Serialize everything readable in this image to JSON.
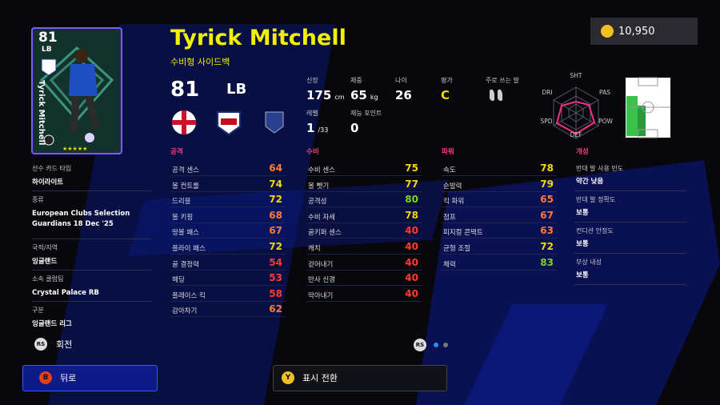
{
  "coins": "10,950",
  "card": {
    "rating": 81,
    "position": "LB",
    "name": "Tyrick Mitchell"
  },
  "player": {
    "name": "Tyrick Mitchell",
    "style": "수비형 사이드백",
    "rating": 81,
    "position": "LB"
  },
  "info": [
    {
      "label": "신장",
      "value": 175,
      "unit": "cm"
    },
    {
      "label": "체중",
      "value": 65,
      "unit": "kg"
    },
    {
      "label": "나이",
      "value": 26
    },
    {
      "label": "평가",
      "value": "C"
    },
    {
      "label": "주로 쓰는 발"
    },
    {
      "label": "레벨",
      "value": 1,
      "unit": "/33"
    },
    {
      "label": "재능 포인트",
      "value": 0
    }
  ],
  "radar": [
    "SHT",
    "PAS",
    "POW",
    "DEF",
    "SPD",
    "DRI"
  ],
  "details": [
    {
      "label": "선수 카드 타입",
      "value": "하이라이트"
    },
    {
      "label": "종류",
      "value": "European Clubs Selection Guardians 18 Dec '25"
    },
    {
      "label": "국적/지역",
      "value": "잉글랜드"
    },
    {
      "label": "소속 클럽팀",
      "value": "Crystal Palace RB"
    },
    {
      "label": "구분",
      "value": "잉글랜드 리그"
    }
  ],
  "stats": [
    {
      "title": "공격",
      "rows": [
        {
          "label": "공격 센스",
          "value": 64
        },
        {
          "label": "볼 컨트롤",
          "value": 74
        },
        {
          "label": "드리블",
          "value": 72
        },
        {
          "label": "볼 키핑",
          "value": 68
        },
        {
          "label": "땅볼 패스",
          "value": 67
        },
        {
          "label": "플라이 패스",
          "value": 72
        },
        {
          "label": "골 결정력",
          "value": 54
        },
        {
          "label": "헤딩",
          "value": 53
        },
        {
          "label": "플레이스 킥",
          "value": 58
        },
        {
          "label": "감아차기",
          "value": 62
        }
      ]
    },
    {
      "title": "수비",
      "rows": [
        {
          "label": "수비 센스",
          "value": 75
        },
        {
          "label": "볼 뺏기",
          "value": 77
        },
        {
          "label": "공격성",
          "value": 80
        },
        {
          "label": "수비 자세",
          "value": 78
        },
        {
          "label": "골키퍼 센스",
          "value": 40
        },
        {
          "label": "캐치",
          "value": 40
        },
        {
          "label": "걷어내기",
          "value": 40
        },
        {
          "label": "반사 신경",
          "value": 40
        },
        {
          "label": "막아내기",
          "value": 40
        }
      ]
    },
    {
      "title": "파워",
      "rows": [
        {
          "label": "속도",
          "value": 78
        },
        {
          "label": "순발력",
          "value": 79
        },
        {
          "label": "킥 파워",
          "value": 65
        },
        {
          "label": "점프",
          "value": 67
        },
        {
          "label": "피지컬 콘택트",
          "value": 63
        },
        {
          "label": "균형 조절",
          "value": 72
        },
        {
          "label": "체력",
          "value": 83
        }
      ]
    }
  ],
  "traits": {
    "title": "개성",
    "rows": [
      {
        "label": "반대 발 사용 빈도",
        "value": "약간 낮음"
      },
      {
        "label": "반대 발 정확도",
        "value": "보통"
      },
      {
        "label": "컨디션 안정도",
        "value": "보통"
      },
      {
        "label": "부상 내성",
        "value": "보통"
      }
    ]
  },
  "rotate": {
    "button": "RS",
    "label": "회전"
  },
  "pager_button": "RS",
  "back": {
    "button": "B",
    "label": "뒤로"
  },
  "toggle": {
    "button": "Y",
    "label": "표시 전환"
  }
}
